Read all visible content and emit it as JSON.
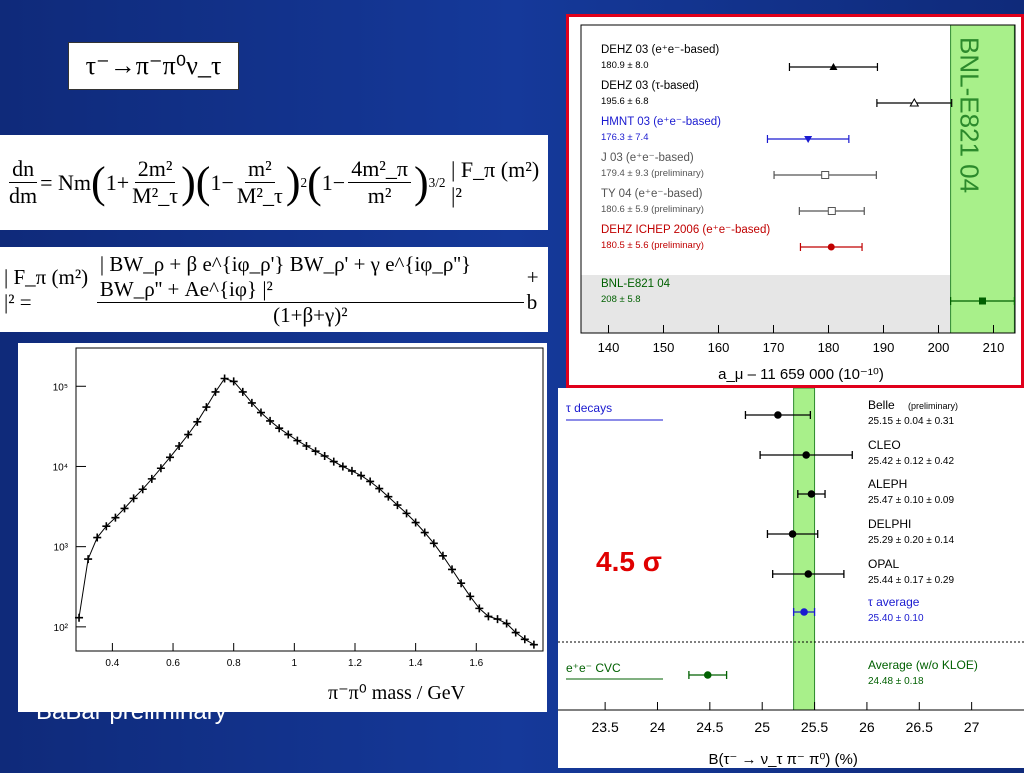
{
  "title_equation": "τ⁻→π⁻π⁰ν_τ",
  "equation1": {
    "lhs_num": "dn",
    "lhs_den": "dm",
    "eq": "=",
    "nm": "Nm",
    "f1_num": "2m²",
    "f1_den": "M²_τ",
    "f2_num": "m²",
    "f2_den": "M²_τ",
    "f3_num": "4m²_π",
    "f3_den": "m²",
    "rhs": "| F_π (m²) |²"
  },
  "equation2": {
    "lhs": "| F_π (m²) |² =",
    "numerator": "| BW_ρ + β e^{iφ_ρ'} BW_ρ' + γ e^{iφ_ρ''} BW_ρ'' + Ae^{iφ} |²",
    "denominator": "(1+β+γ)²",
    "tail": "+ b"
  },
  "caption_left": "BaBar preliminary",
  "mass_axis_label": "π⁻π⁰ mass / GeV",
  "sigma_label": "4.5 σ",
  "colors": {
    "background": "#15399a",
    "highlight_band": "#a8f08a",
    "red_frame": "#e0001b",
    "blue_entry": "#1a1ad0",
    "red_entry": "#c00000",
    "green_entry": "#006000"
  },
  "chart_data": [
    {
      "type": "scatter",
      "xlim": [
        0.28,
        1.82
      ],
      "ylog": true,
      "ylim": [
        50,
        300000
      ],
      "x_ticks": [
        0.4,
        0.6,
        0.8,
        1,
        1.2,
        1.4,
        1.6
      ],
      "y_ticks": [
        {
          "v": 100,
          "label": "10²"
        },
        {
          "v": 1000,
          "label": "10³"
        },
        {
          "v": 10000,
          "label": "10⁴"
        },
        {
          "v": 100000,
          "label": "10⁵"
        }
      ],
      "x": [
        0.29,
        0.32,
        0.35,
        0.38,
        0.41,
        0.44,
        0.47,
        0.5,
        0.53,
        0.56,
        0.59,
        0.62,
        0.65,
        0.68,
        0.71,
        0.74,
        0.77,
        0.8,
        0.83,
        0.86,
        0.89,
        0.92,
        0.95,
        0.98,
        1.01,
        1.04,
        1.07,
        1.1,
        1.13,
        1.16,
        1.19,
        1.22,
        1.25,
        1.28,
        1.31,
        1.34,
        1.37,
        1.4,
        1.43,
        1.46,
        1.49,
        1.52,
        1.55,
        1.58,
        1.61,
        1.64,
        1.67,
        1.7,
        1.73,
        1.76,
        1.79
      ],
      "y": [
        130,
        700,
        1300,
        1800,
        2300,
        3000,
        4000,
        5200,
        7000,
        9500,
        13000,
        18000,
        25000,
        36000,
        55000,
        85000,
        125000,
        115000,
        85000,
        62000,
        47000,
        37000,
        30000,
        25000,
        21000,
        18000,
        15500,
        13500,
        11500,
        10000,
        8800,
        7700,
        6500,
        5300,
        4200,
        3300,
        2600,
        2000,
        1500,
        1100,
        770,
        520,
        350,
        240,
        170,
        135,
        125,
        110,
        85,
        70,
        60
      ]
    },
    {
      "type": "scatter",
      "xlabel": "a_μ – 11 659 000   (10⁻¹⁰)",
      "xlim": [
        135,
        215
      ],
      "x_ticks": [
        140,
        150,
        160,
        170,
        180,
        190,
        200,
        210
      ],
      "band": [
        202.2,
        213.8
      ],
      "band_label": "BNL-E821 04",
      "entries": [
        {
          "name": "DEHZ 03 (e⁺e⁻-based)",
          "value": "180.9 ± 8.0",
          "x": 180.9,
          "err": 8.0,
          "marker": "filled-triangle",
          "color": "#000000"
        },
        {
          "name": "DEHZ 03 (τ-based)",
          "value": "195.6 ± 6.8",
          "x": 195.6,
          "err": 6.8,
          "marker": "open-triangle",
          "color": "#000000"
        },
        {
          "name": "HMNT 03 (e⁺e⁻-based)",
          "value": "176.3 ± 7.4",
          "x": 176.3,
          "err": 7.4,
          "marker": "filled-down-triangle",
          "color": "#1a1ad0"
        },
        {
          "name": "J 03 (e⁺e⁻-based)",
          "value": "179.4 ± 9.3    (preliminary)",
          "x": 179.4,
          "err": 9.3,
          "marker": "open-square",
          "color": "#555555"
        },
        {
          "name": "TY 04 (e⁺e⁻-based)",
          "value": "180.6 ± 5.9    (preliminary)",
          "x": 180.6,
          "err": 5.9,
          "marker": "open-square",
          "color": "#555555"
        },
        {
          "name": "DEHZ ICHEP 2006 (e⁺e⁻-based)",
          "value": "180.5 ± 5.6    (preliminary)",
          "x": 180.5,
          "err": 5.6,
          "marker": "filled-circle",
          "color": "#c00000"
        },
        {
          "name": "BNL-E821 04",
          "value": "208 ± 5.8",
          "x": 208,
          "err": 5.8,
          "marker": "filled-square",
          "color": "#006000"
        }
      ]
    },
    {
      "type": "scatter",
      "xlabel": "B(τ⁻ → ν_τ π⁻ π⁰)      (%)",
      "xlim": [
        23.05,
        27.5
      ],
      "x_ticks": [
        23.5,
        24,
        24.5,
        25,
        25.5,
        26,
        26.5,
        27
      ],
      "band": [
        25.3,
        25.5
      ],
      "section_tau": "τ decays",
      "section_ee": "e⁺e⁻ CVC",
      "entries": [
        {
          "name": "Belle",
          "tag": "(preliminary)",
          "value": "25.15 ± 0.04 ± 0.31",
          "x": 25.15,
          "err": 0.31,
          "color": "#000000"
        },
        {
          "name": "CLEO",
          "tag": "",
          "value": "25.42 ± 0.12 ± 0.42",
          "x": 25.42,
          "err": 0.44,
          "color": "#000000"
        },
        {
          "name": "ALEPH",
          "tag": "",
          "value": "25.47 ± 0.10 ± 0.09",
          "x": 25.47,
          "err": 0.13,
          "color": "#000000"
        },
        {
          "name": "DELPHI",
          "tag": "",
          "value": "25.29 ± 0.20 ± 0.14",
          "x": 25.29,
          "err": 0.24,
          "color": "#000000"
        },
        {
          "name": "OPAL",
          "tag": "",
          "value": "25.44 ± 0.17 ± 0.29",
          "x": 25.44,
          "err": 0.34,
          "color": "#000000"
        },
        {
          "name": "τ average",
          "tag": "",
          "value": "25.40 ± 0.10",
          "x": 25.4,
          "err": 0.1,
          "color": "#1a1ad0"
        },
        {
          "name": "Average (w/o KLOE)",
          "tag": "",
          "value": "24.48 ± 0.18",
          "x": 24.48,
          "err": 0.18,
          "color": "#006000"
        }
      ]
    }
  ]
}
